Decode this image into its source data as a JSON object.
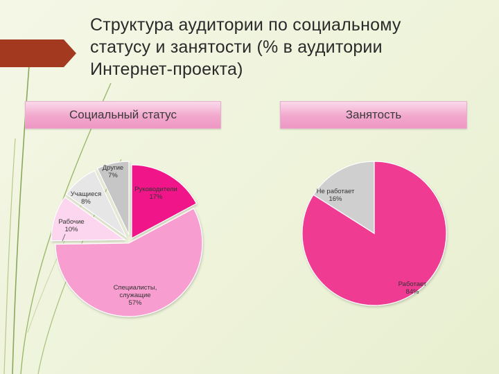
{
  "slide": {
    "title_line1": "Структура аудитории по социальному",
    "title_line2": "статусу и занятости (% в аудитории",
    "title_line3": "Интернет-проекта)",
    "accent_color": "#a33a1f"
  },
  "chart_data": [
    {
      "type": "pie",
      "header": "Социальный статус",
      "title": "",
      "slices": [
        {
          "label": "Руководители",
          "value": 17,
          "value_label": "17%",
          "color": "#f0138a"
        },
        {
          "label": "Специалисты, служащие",
          "value": 57,
          "value_label": "57%",
          "color": "#f89dd0"
        },
        {
          "label": "Рабочие",
          "value": 10,
          "value_label": "10%",
          "color": "#fbd6ee"
        },
        {
          "label": "Учащиеся",
          "value": 8,
          "value_label": "8%",
          "color": "#e6e6e6"
        },
        {
          "label": "Другие",
          "value": 7,
          "value_label": "7%",
          "color": "#c6c6c6"
        }
      ],
      "legend": "none"
    },
    {
      "type": "pie",
      "header": "Занятость",
      "title": "",
      "slices": [
        {
          "label": "Работает",
          "value": 84,
          "value_label": "84%",
          "color": "#f03b93"
        },
        {
          "label": "Не работает",
          "value": 16,
          "value_label": "16%",
          "color": "#cfcfcf"
        }
      ],
      "legend": "none"
    }
  ]
}
